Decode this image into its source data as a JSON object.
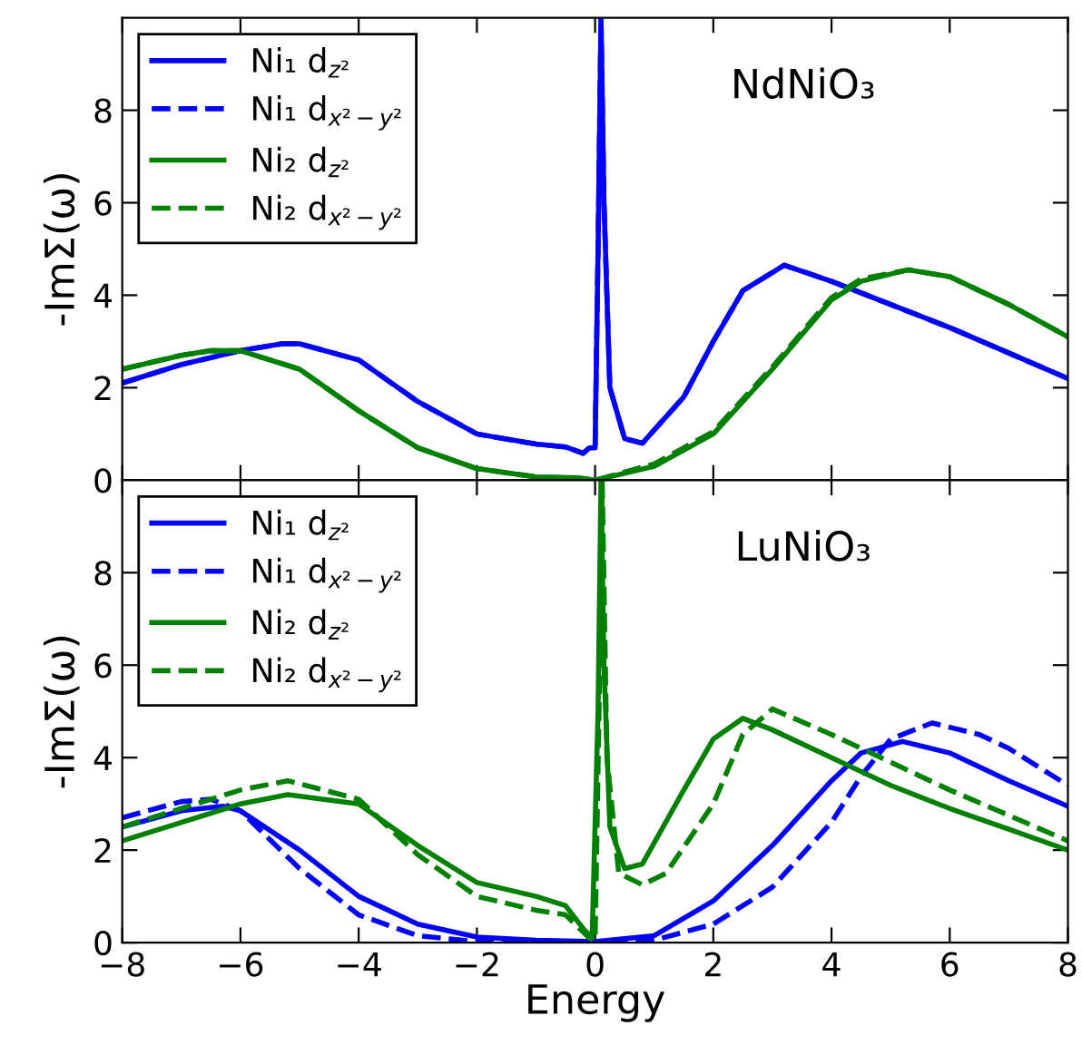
{
  "chart_data": [
    {
      "type": "line",
      "ylabel": "-ImΣ(ω)",
      "xlim": [
        -8,
        8
      ],
      "xticks": [
        -8,
        -6,
        -4,
        -2,
        0,
        2,
        4,
        6,
        8
      ],
      "ylim": [
        0,
        10
      ],
      "yticks": [
        0,
        2,
        4,
        6,
        8
      ],
      "tick_labels": "y",
      "legend": "top left",
      "annotations": [
        "NdNiO₃"
      ],
      "series": [
        {
          "name": "Ni₁ d$_{z²}$",
          "color": "#0000ff",
          "line_style": "solid",
          "x": [
            -8,
            -7,
            -6,
            -5.3,
            -5,
            -4,
            -3,
            -2,
            -1,
            -0.5,
            -0.2,
            -0.1,
            0,
            0.05,
            0.1,
            0.15,
            0.25,
            0.5,
            0.8,
            1.5,
            2,
            2.5,
            3.2,
            4,
            5,
            6,
            7,
            8
          ],
          "values": [
            2.1,
            2.5,
            2.8,
            2.95,
            2.95,
            2.6,
            1.7,
            1.0,
            0.78,
            0.72,
            0.58,
            0.7,
            0.7,
            5,
            10,
            6,
            2,
            0.9,
            0.8,
            1.8,
            3.0,
            4.1,
            4.65,
            4.3,
            3.8,
            3.3,
            2.75,
            2.2
          ]
        },
        {
          "name": "Ni₁ d$_{x²−y²}$",
          "color": "#0000ff",
          "line_style": "dashed",
          "x": [
            -8,
            -7,
            -6,
            -5.3,
            -5,
            -4,
            -3,
            -2,
            -1,
            -0.5,
            -0.2,
            -0.1,
            0,
            0.05,
            0.1,
            0.15,
            0.25,
            0.5,
            0.8,
            1.5,
            2,
            2.5,
            3.2,
            4,
            5,
            6,
            7,
            8
          ],
          "values": [
            2.1,
            2.5,
            2.8,
            2.95,
            2.95,
            2.6,
            1.7,
            1.0,
            0.78,
            0.72,
            0.58,
            0.7,
            0.7,
            5,
            10,
            6,
            2,
            0.9,
            0.8,
            1.8,
            3.0,
            4.1,
            4.65,
            4.3,
            3.8,
            3.3,
            2.75,
            2.2
          ]
        },
        {
          "name": "Ni₂ d$_{z²}$",
          "color": "#008000",
          "line_style": "solid",
          "x": [
            -8,
            -7,
            -6.5,
            -6,
            -5,
            -4,
            -3,
            -2,
            -1,
            -0.3,
            0,
            1,
            2,
            3,
            4,
            4.5,
            5.3,
            6,
            7,
            8
          ],
          "values": [
            2.4,
            2.7,
            2.8,
            2.8,
            2.4,
            1.5,
            0.7,
            0.25,
            0.07,
            0.05,
            0,
            0.3,
            1.0,
            2.4,
            3.9,
            4.3,
            4.55,
            4.4,
            3.8,
            3.1
          ]
        },
        {
          "name": "Ni₂ d$_{x²−y²}$",
          "color": "#008000",
          "line_style": "dashed",
          "x": [
            -8,
            -7,
            -6.5,
            -6,
            -5,
            -4,
            -3,
            -2,
            -1,
            -0.3,
            0,
            1,
            2,
            3,
            4,
            4.5,
            5.3,
            6,
            7,
            8
          ],
          "values": [
            2.4,
            2.7,
            2.8,
            2.8,
            2.4,
            1.5,
            0.7,
            0.25,
            0.07,
            0.05,
            0,
            0.35,
            1.05,
            2.45,
            3.95,
            4.35,
            4.55,
            4.4,
            3.8,
            3.1
          ]
        }
      ]
    },
    {
      "type": "line",
      "xlabel": "Energy",
      "ylabel": "-ImΣ(ω)",
      "xlim": [
        -8,
        8
      ],
      "xticks": [
        {
          "value": -8,
          "label": "−8"
        },
        {
          "value": -6,
          "label": "−6"
        },
        {
          "value": -4,
          "label": "−4"
        },
        {
          "value": -2,
          "label": "−2"
        },
        0,
        2,
        4,
        6,
        8
      ],
      "ylim": [
        0,
        10
      ],
      "yticks": [
        0,
        2,
        4,
        6,
        8
      ],
      "legend": "top left",
      "annotations": [
        "LuNiO₃"
      ],
      "series": [
        {
          "name": "Ni₁ d$_{z²}$",
          "color": "#0000ff",
          "line_style": "solid",
          "x": [
            -8,
            -7,
            -6.3,
            -6,
            -5,
            -4,
            -3,
            -2,
            -1,
            0,
            1,
            2,
            3,
            4,
            4.5,
            5.2,
            6,
            7,
            8
          ],
          "values": [
            2.5,
            2.85,
            2.95,
            2.85,
            2.0,
            1.0,
            0.4,
            0.12,
            0.05,
            0.02,
            0.15,
            0.9,
            2.1,
            3.5,
            4.1,
            4.35,
            4.1,
            3.5,
            2.95
          ]
        },
        {
          "name": "Ni₁ d$_{x²−y²}$",
          "color": "#0000ff",
          "line_style": "dashed",
          "x": [
            -8,
            -7,
            -6.5,
            -6,
            -5,
            -4,
            -3,
            -2,
            0,
            1,
            2,
            3,
            4,
            4.5,
            5,
            5.7,
            6.5,
            7,
            8
          ],
          "values": [
            2.7,
            3.05,
            3.1,
            2.85,
            1.6,
            0.6,
            0.15,
            0.02,
            0,
            0.05,
            0.4,
            1.2,
            2.6,
            3.6,
            4.4,
            4.75,
            4.5,
            4.2,
            3.4
          ]
        },
        {
          "name": "Ni₂ d$_{z²}$",
          "color": "#008000",
          "line_style": "solid",
          "x": [
            -8,
            -7,
            -6,
            -5.2,
            -4,
            -3,
            -2,
            -1,
            -0.5,
            -0.2,
            -0.05,
            0.05,
            0.1,
            0.15,
            0.25,
            0.5,
            0.8,
            1.5,
            2,
            2.5,
            3,
            4,
            5,
            6,
            7,
            8
          ],
          "values": [
            2.2,
            2.6,
            3.0,
            3.2,
            3.0,
            2.1,
            1.3,
            1.0,
            0.8,
            0.3,
            0.1,
            5,
            10,
            6,
            2.5,
            1.6,
            1.7,
            3.3,
            4.4,
            4.85,
            4.6,
            4.0,
            3.4,
            2.9,
            2.45,
            2.0
          ]
        },
        {
          "name": "Ni₂ d$_{x²−y²}$",
          "color": "#008000",
          "line_style": "dashed",
          "x": [
            -8,
            -7,
            -6,
            -5.2,
            -4,
            -3,
            -2,
            -1,
            -0.5,
            -0.1,
            0,
            0.08,
            0.12,
            0.2,
            0.4,
            0.8,
            1.2,
            2,
            2.5,
            3,
            4,
            5,
            6,
            7,
            8
          ],
          "values": [
            2.5,
            2.9,
            3.3,
            3.5,
            3.1,
            1.9,
            1.0,
            0.7,
            0.6,
            0.1,
            0.05,
            6,
            10,
            4,
            1.5,
            1.25,
            1.5,
            3.0,
            4.5,
            5.05,
            4.5,
            3.9,
            3.3,
            2.75,
            2.2
          ]
        }
      ]
    }
  ]
}
